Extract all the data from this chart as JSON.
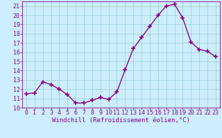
{
  "x": [
    0,
    1,
    2,
    3,
    4,
    5,
    6,
    7,
    8,
    9,
    10,
    11,
    12,
    13,
    14,
    15,
    16,
    17,
    18,
    19,
    20,
    21,
    22,
    23
  ],
  "y": [
    11.5,
    11.6,
    12.8,
    12.5,
    12.0,
    11.4,
    10.5,
    10.5,
    10.8,
    11.1,
    10.9,
    11.7,
    14.1,
    16.4,
    17.6,
    18.8,
    20.0,
    21.0,
    21.2,
    19.7,
    17.1,
    16.3,
    16.1,
    15.5
  ],
  "line_color": "#880088",
  "marker": "+",
  "marker_size": 5,
  "marker_lw": 1.2,
  "bg_color": "#cceeff",
  "grid_color": "#99cccc",
  "xlabel": "Windchill (Refroidissement éolien,°C)",
  "xlabel_color": "#880088",
  "tick_color": "#880088",
  "ylim": [
    10,
    21.5
  ],
  "xlim": [
    -0.5,
    23.5
  ],
  "yticks": [
    10,
    11,
    12,
    13,
    14,
    15,
    16,
    17,
    18,
    19,
    20,
    21
  ],
  "xticks": [
    0,
    1,
    2,
    3,
    4,
    5,
    6,
    7,
    8,
    9,
    10,
    11,
    12,
    13,
    14,
    15,
    16,
    17,
    18,
    19,
    20,
    21,
    22,
    23
  ],
  "line_width": 1.0,
  "tick_fontsize": 6.0,
  "xlabel_fontsize": 6.5
}
